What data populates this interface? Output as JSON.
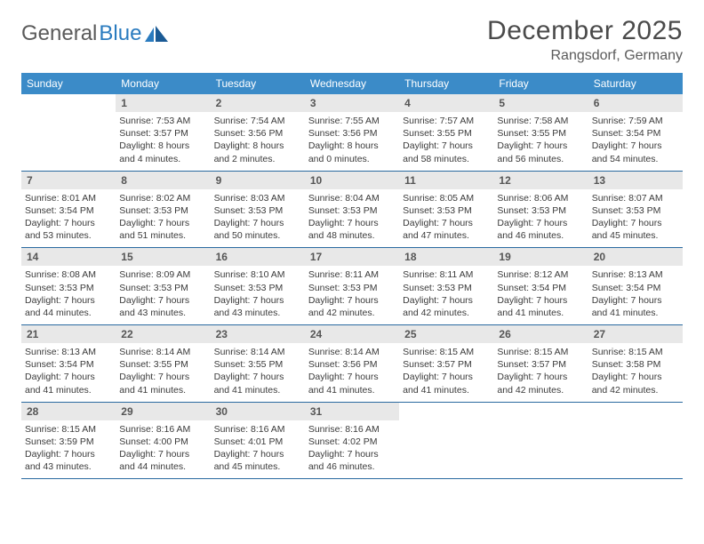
{
  "logo": {
    "word1": "General",
    "word2": "Blue"
  },
  "title": "December 2025",
  "location": "Rangsdorf, Germany",
  "colors": {
    "header_bg": "#3b8bc8",
    "header_text": "#ffffff",
    "week_border": "#2a6aa0",
    "daynum_bg": "#e8e8e8",
    "text": "#3a3a3a",
    "logo_gray": "#5a5a5a",
    "logo_blue": "#2a7bbf"
  },
  "day_names": [
    "Sunday",
    "Monday",
    "Tuesday",
    "Wednesday",
    "Thursday",
    "Friday",
    "Saturday"
  ],
  "weeks": [
    [
      {
        "n": "",
        "sr": "",
        "ss": "",
        "dl": ""
      },
      {
        "n": "1",
        "sr": "Sunrise: 7:53 AM",
        "ss": "Sunset: 3:57 PM",
        "dl": "Daylight: 8 hours and 4 minutes."
      },
      {
        "n": "2",
        "sr": "Sunrise: 7:54 AM",
        "ss": "Sunset: 3:56 PM",
        "dl": "Daylight: 8 hours and 2 minutes."
      },
      {
        "n": "3",
        "sr": "Sunrise: 7:55 AM",
        "ss": "Sunset: 3:56 PM",
        "dl": "Daylight: 8 hours and 0 minutes."
      },
      {
        "n": "4",
        "sr": "Sunrise: 7:57 AM",
        "ss": "Sunset: 3:55 PM",
        "dl": "Daylight: 7 hours and 58 minutes."
      },
      {
        "n": "5",
        "sr": "Sunrise: 7:58 AM",
        "ss": "Sunset: 3:55 PM",
        "dl": "Daylight: 7 hours and 56 minutes."
      },
      {
        "n": "6",
        "sr": "Sunrise: 7:59 AM",
        "ss": "Sunset: 3:54 PM",
        "dl": "Daylight: 7 hours and 54 minutes."
      }
    ],
    [
      {
        "n": "7",
        "sr": "Sunrise: 8:01 AM",
        "ss": "Sunset: 3:54 PM",
        "dl": "Daylight: 7 hours and 53 minutes."
      },
      {
        "n": "8",
        "sr": "Sunrise: 8:02 AM",
        "ss": "Sunset: 3:53 PM",
        "dl": "Daylight: 7 hours and 51 minutes."
      },
      {
        "n": "9",
        "sr": "Sunrise: 8:03 AM",
        "ss": "Sunset: 3:53 PM",
        "dl": "Daylight: 7 hours and 50 minutes."
      },
      {
        "n": "10",
        "sr": "Sunrise: 8:04 AM",
        "ss": "Sunset: 3:53 PM",
        "dl": "Daylight: 7 hours and 48 minutes."
      },
      {
        "n": "11",
        "sr": "Sunrise: 8:05 AM",
        "ss": "Sunset: 3:53 PM",
        "dl": "Daylight: 7 hours and 47 minutes."
      },
      {
        "n": "12",
        "sr": "Sunrise: 8:06 AM",
        "ss": "Sunset: 3:53 PM",
        "dl": "Daylight: 7 hours and 46 minutes."
      },
      {
        "n": "13",
        "sr": "Sunrise: 8:07 AM",
        "ss": "Sunset: 3:53 PM",
        "dl": "Daylight: 7 hours and 45 minutes."
      }
    ],
    [
      {
        "n": "14",
        "sr": "Sunrise: 8:08 AM",
        "ss": "Sunset: 3:53 PM",
        "dl": "Daylight: 7 hours and 44 minutes."
      },
      {
        "n": "15",
        "sr": "Sunrise: 8:09 AM",
        "ss": "Sunset: 3:53 PM",
        "dl": "Daylight: 7 hours and 43 minutes."
      },
      {
        "n": "16",
        "sr": "Sunrise: 8:10 AM",
        "ss": "Sunset: 3:53 PM",
        "dl": "Daylight: 7 hours and 43 minutes."
      },
      {
        "n": "17",
        "sr": "Sunrise: 8:11 AM",
        "ss": "Sunset: 3:53 PM",
        "dl": "Daylight: 7 hours and 42 minutes."
      },
      {
        "n": "18",
        "sr": "Sunrise: 8:11 AM",
        "ss": "Sunset: 3:53 PM",
        "dl": "Daylight: 7 hours and 42 minutes."
      },
      {
        "n": "19",
        "sr": "Sunrise: 8:12 AM",
        "ss": "Sunset: 3:54 PM",
        "dl": "Daylight: 7 hours and 41 minutes."
      },
      {
        "n": "20",
        "sr": "Sunrise: 8:13 AM",
        "ss": "Sunset: 3:54 PM",
        "dl": "Daylight: 7 hours and 41 minutes."
      }
    ],
    [
      {
        "n": "21",
        "sr": "Sunrise: 8:13 AM",
        "ss": "Sunset: 3:54 PM",
        "dl": "Daylight: 7 hours and 41 minutes."
      },
      {
        "n": "22",
        "sr": "Sunrise: 8:14 AM",
        "ss": "Sunset: 3:55 PM",
        "dl": "Daylight: 7 hours and 41 minutes."
      },
      {
        "n": "23",
        "sr": "Sunrise: 8:14 AM",
        "ss": "Sunset: 3:55 PM",
        "dl": "Daylight: 7 hours and 41 minutes."
      },
      {
        "n": "24",
        "sr": "Sunrise: 8:14 AM",
        "ss": "Sunset: 3:56 PM",
        "dl": "Daylight: 7 hours and 41 minutes."
      },
      {
        "n": "25",
        "sr": "Sunrise: 8:15 AM",
        "ss": "Sunset: 3:57 PM",
        "dl": "Daylight: 7 hours and 41 minutes."
      },
      {
        "n": "26",
        "sr": "Sunrise: 8:15 AM",
        "ss": "Sunset: 3:57 PM",
        "dl": "Daylight: 7 hours and 42 minutes."
      },
      {
        "n": "27",
        "sr": "Sunrise: 8:15 AM",
        "ss": "Sunset: 3:58 PM",
        "dl": "Daylight: 7 hours and 42 minutes."
      }
    ],
    [
      {
        "n": "28",
        "sr": "Sunrise: 8:15 AM",
        "ss": "Sunset: 3:59 PM",
        "dl": "Daylight: 7 hours and 43 minutes."
      },
      {
        "n": "29",
        "sr": "Sunrise: 8:16 AM",
        "ss": "Sunset: 4:00 PM",
        "dl": "Daylight: 7 hours and 44 minutes."
      },
      {
        "n": "30",
        "sr": "Sunrise: 8:16 AM",
        "ss": "Sunset: 4:01 PM",
        "dl": "Daylight: 7 hours and 45 minutes."
      },
      {
        "n": "31",
        "sr": "Sunrise: 8:16 AM",
        "ss": "Sunset: 4:02 PM",
        "dl": "Daylight: 7 hours and 46 minutes."
      },
      {
        "n": "",
        "sr": "",
        "ss": "",
        "dl": ""
      },
      {
        "n": "",
        "sr": "",
        "ss": "",
        "dl": ""
      },
      {
        "n": "",
        "sr": "",
        "ss": "",
        "dl": ""
      }
    ]
  ]
}
